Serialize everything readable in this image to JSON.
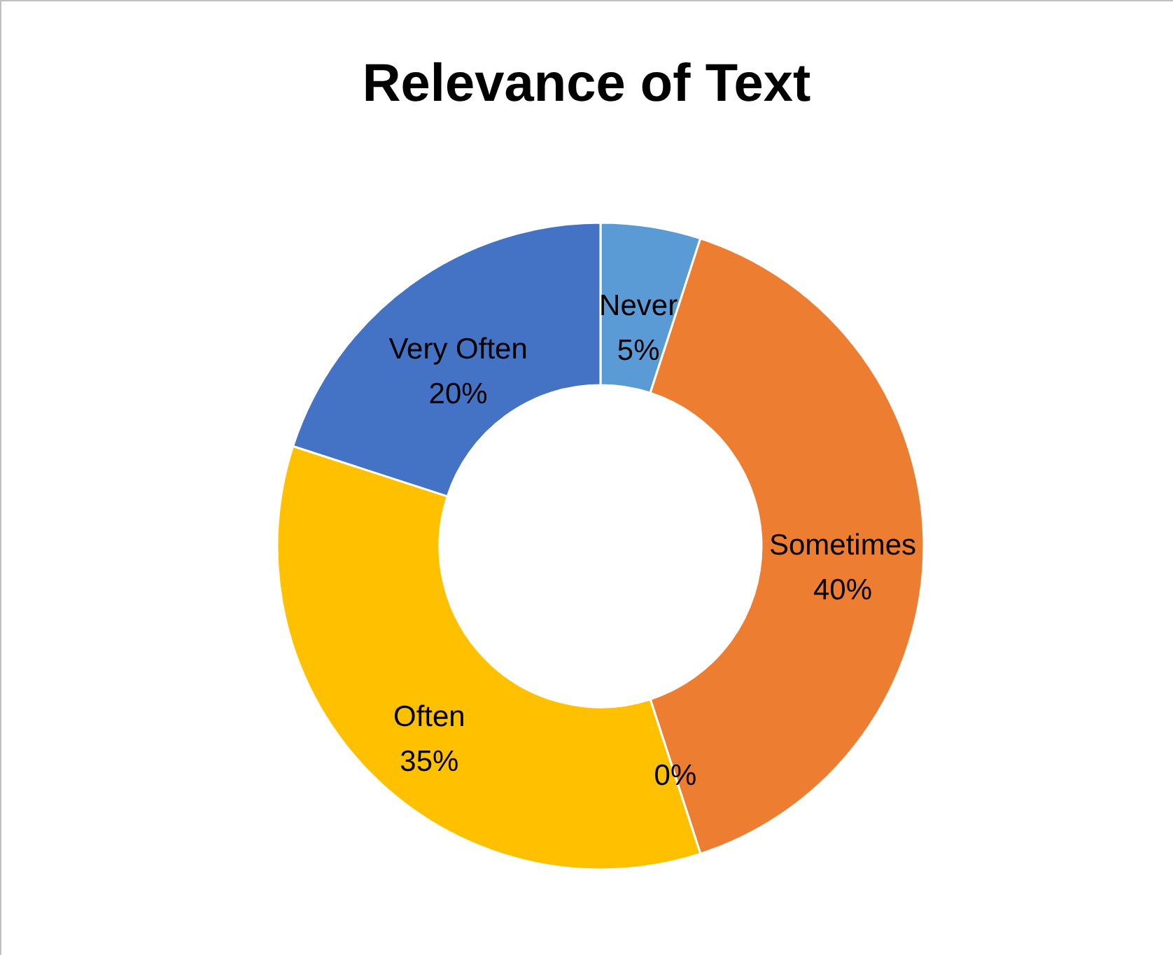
{
  "chart_data": {
    "type": "donut",
    "title": "Relevance of Text",
    "categories": [
      "Never",
      "Sometimes",
      null,
      "Often",
      "Very Often"
    ],
    "values": [
      5,
      40,
      0,
      35,
      20
    ],
    "colors": [
      "#5b9bd5",
      "#ed7d31",
      "#a5a5a5",
      "#ffc000",
      "#4472c4"
    ],
    "value_labels": [
      "5%",
      "40%",
      "0%",
      "35%",
      "20%"
    ],
    "legend": false
  }
}
